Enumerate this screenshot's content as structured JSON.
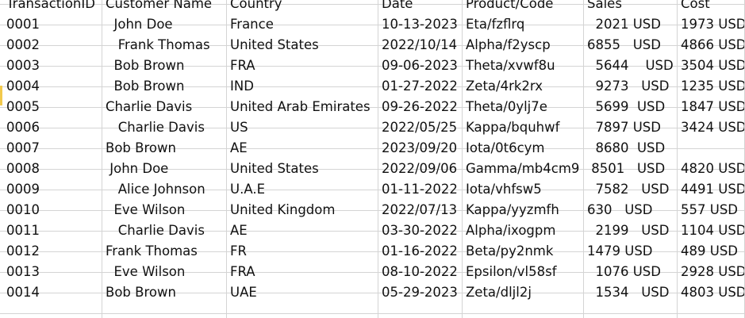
{
  "headers": [
    "TransactionID",
    "Customer Name",
    "Country",
    "Date",
    "Product/Code",
    "Sales",
    "Cost"
  ],
  "rows": [
    [
      "0001",
      "  John Doe",
      "France",
      "10-13-2023",
      "Eta/fzflrq",
      "  2021 USD",
      "1973 USD"
    ],
    [
      "0002",
      "   Frank Thomas",
      "United States",
      "2022/10/14",
      "Alpha/f2yscp",
      "6855   USD",
      "4866 USD"
    ],
    [
      "0003",
      "  Bob Brown",
      "FRA",
      "09-06-2023",
      "Theta/xvwf8u",
      "  5644    USD",
      "3504 USD"
    ],
    [
      "0004",
      "  Bob Brown",
      "IND",
      "01-27-2022",
      "Zeta/4rk2rx",
      "  9273   USD",
      "1235 USD"
    ],
    [
      "0005",
      "Charlie Davis",
      "United Arab Emirates",
      "09-26-2022",
      "Theta/0ylj7e",
      "  5699  USD",
      "1847 USD"
    ],
    [
      "0006",
      "   Charlie Davis",
      "US",
      "2022/05/25",
      "Kappa/bquhwf",
      "  7897 USD",
      "3424 USD"
    ],
    [
      "0007",
      "Bob Brown",
      "AE",
      "2023/09/20",
      "Iota/0t6cym",
      "  8680  USD",
      ""
    ],
    [
      "0008",
      " John Doe",
      "United States",
      "2022/09/06",
      "Gamma/mb4cm9",
      " 8501   USD",
      "4820 USD"
    ],
    [
      "0009",
      "   Alice Johnson",
      "U.A.E",
      "01-11-2022",
      "Iota/vhfsw5",
      "  7582   USD",
      "4491 USD"
    ],
    [
      "0010",
      "  Eve Wilson",
      "United Kingdom",
      "2022/07/13",
      "Kappa/yyzmfh",
      "630   USD",
      "557 USD"
    ],
    [
      "0011",
      "   Charlie Davis",
      "AE",
      "03-30-2022",
      "Alpha/ixogpm",
      "  2199   USD",
      "1104 USD"
    ],
    [
      "0012",
      "Frank Thomas",
      "FR",
      "01-16-2022",
      "Beta/py2nmk",
      "1479 USD",
      "489 USD"
    ],
    [
      "0013",
      "  Eve Wilson",
      "FRA",
      "08-10-2022",
      "Epsilon/vl58sf",
      "  1076 USD",
      "2928 USD"
    ],
    [
      "0014",
      "Bob Brown",
      "UAE",
      "05-29-2023",
      "Zeta/dljl2j",
      "  1534   USD",
      "4803 USD"
    ]
  ]
}
